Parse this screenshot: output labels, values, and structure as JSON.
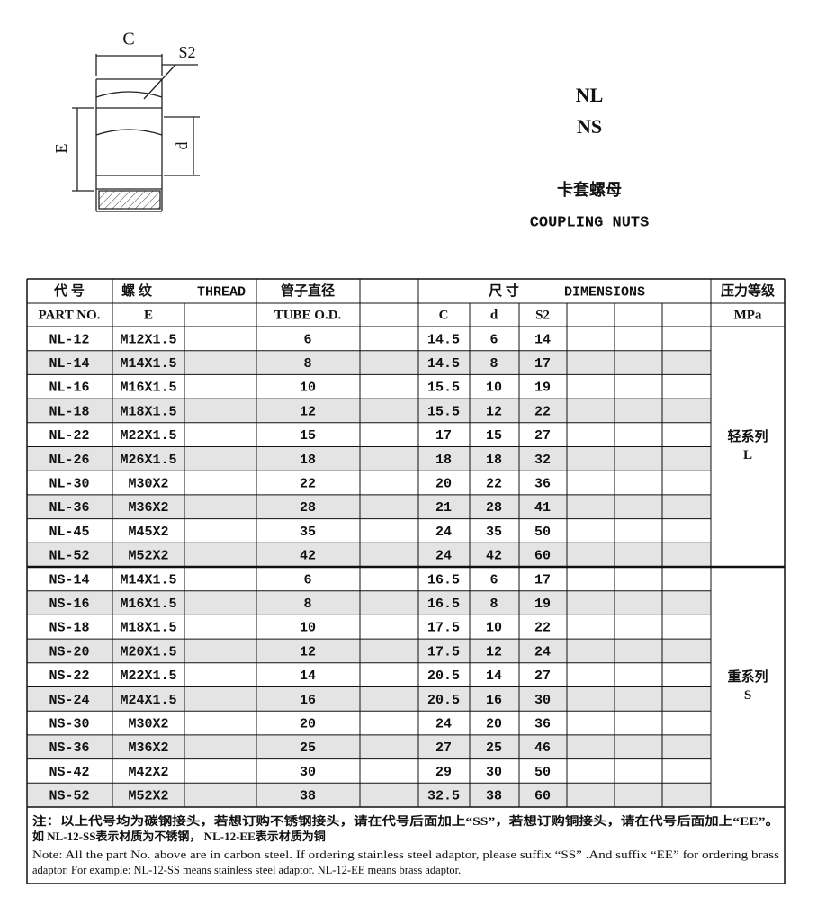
{
  "drawing": {
    "C": "C",
    "S2": "S2",
    "E": "E",
    "d": "d"
  },
  "header": {
    "codes": [
      "NL",
      "NS"
    ],
    "name_cn": "卡套螺母",
    "name_en": "COUPLING NUTS"
  },
  "table": {
    "head1": [
      "代 号",
      "螺 纹",
      "THREAD",
      "管子直径",
      "尺 寸",
      "DIMENSIONS",
      "压力等级"
    ],
    "head2": [
      "PART NO.",
      "E",
      "TUBE O.D.",
      "C",
      "d",
      "S2",
      "MPa"
    ],
    "groups": [
      {
        "series": "轻系列",
        "code": "L",
        "rows": [
          [
            "NL-12",
            "M12X1.5",
            6,
            14.5,
            6,
            14
          ],
          [
            "NL-14",
            "M14X1.5",
            8,
            14.5,
            8,
            17
          ],
          [
            "NL-16",
            "M16X1.5",
            10,
            15.5,
            10,
            19
          ],
          [
            "NL-18",
            "M18X1.5",
            12,
            15.5,
            12,
            22
          ],
          [
            "NL-22",
            "M22X1.5",
            15,
            17,
            15,
            27
          ],
          [
            "NL-26",
            "M26X1.5",
            18,
            18,
            18,
            32
          ],
          [
            "NL-30",
            "M30X2",
            22,
            20,
            22,
            36
          ],
          [
            "NL-36",
            "M36X2",
            28,
            21,
            28,
            41
          ],
          [
            "NL-45",
            "M45X2",
            35,
            24,
            35,
            50
          ],
          [
            "NL-52",
            "M52X2",
            42,
            24,
            42,
            60
          ]
        ]
      },
      {
        "series": "重系列",
        "code": "S",
        "rows": [
          [
            "NS-14",
            "M14X1.5",
            6,
            16.5,
            6,
            17
          ],
          [
            "NS-16",
            "M16X1.5",
            8,
            16.5,
            8,
            19
          ],
          [
            "NS-18",
            "M18X1.5",
            10,
            17.5,
            10,
            22
          ],
          [
            "NS-20",
            "M20X1.5",
            12,
            17.5,
            12,
            24
          ],
          [
            "NS-22",
            "M22X1.5",
            14,
            20.5,
            14,
            27
          ],
          [
            "NS-24",
            "M24X1.5",
            16,
            20.5,
            16,
            30
          ],
          [
            "NS-30",
            "M30X2",
            20,
            24,
            20,
            36
          ],
          [
            "NS-36",
            "M36X2",
            25,
            27,
            25,
            46
          ],
          [
            "NS-42",
            "M42X2",
            30,
            29,
            30,
            50
          ],
          [
            "NS-52",
            "M52X2",
            38,
            32.5,
            38,
            60
          ]
        ]
      }
    ]
  },
  "notes": [
    "注：以上代号均为碳钢接头，若想订购不锈钢接头，请在代号后面加上“SS”，若想订购铜接头，请在代号后面加上“EE”。",
    "如 NL-12-SS表示材质为不锈钢， NL-12-EE表示材质为铜",
    "Note: All the part No. above are in carbon steel. If ordering stainless steel adaptor, please suffix “SS” .And suffix “EE” for ordering brass",
    "adaptor. For example: NL-12-SS means stainless steel adaptor. NL-12-EE means brass adaptor."
  ]
}
